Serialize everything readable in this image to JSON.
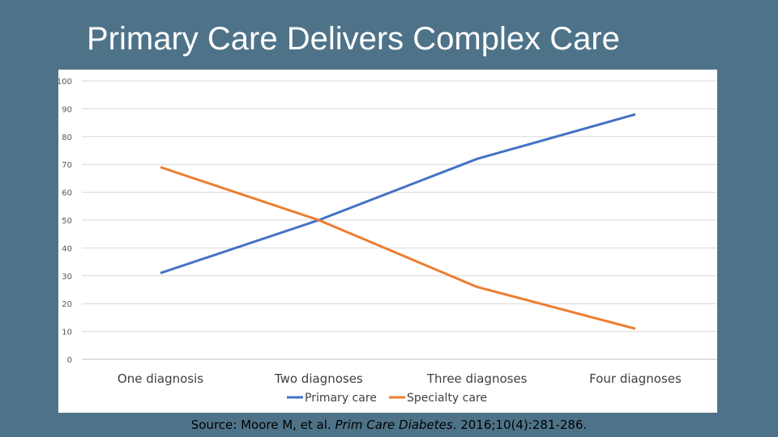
{
  "slide": {
    "title": "Primary Care Delivers Complex Care",
    "source": {
      "prefix": "Source: Moore M, et al. ",
      "journal": "Prim Care Diabetes",
      "suffix": ". 2016;10(4):281-286."
    }
  },
  "colors": {
    "background": "#4e7389",
    "panel": "#ffffff",
    "grid": "#d9d9d9",
    "primary_care": "#4472c4",
    "specialty_care": "#ed7d31"
  },
  "chart_data": {
    "type": "line",
    "title": "",
    "xlabel": "",
    "ylabel": "",
    "ylim": [
      0,
      100
    ],
    "yticks": [
      0,
      10,
      20,
      30,
      40,
      50,
      60,
      70,
      80,
      90,
      100
    ],
    "grid": true,
    "legend_position": "bottom",
    "categories": [
      "One diagnosis",
      "Two diagnoses",
      "Three diagnoses",
      "Four diagnoses"
    ],
    "series": [
      {
        "name": "Primary care",
        "color": "#4472c4",
        "values": [
          31,
          50,
          72,
          88
        ]
      },
      {
        "name": "Specialty care",
        "color": "#ed7d31",
        "values": [
          69,
          50,
          26,
          11
        ]
      }
    ]
  }
}
